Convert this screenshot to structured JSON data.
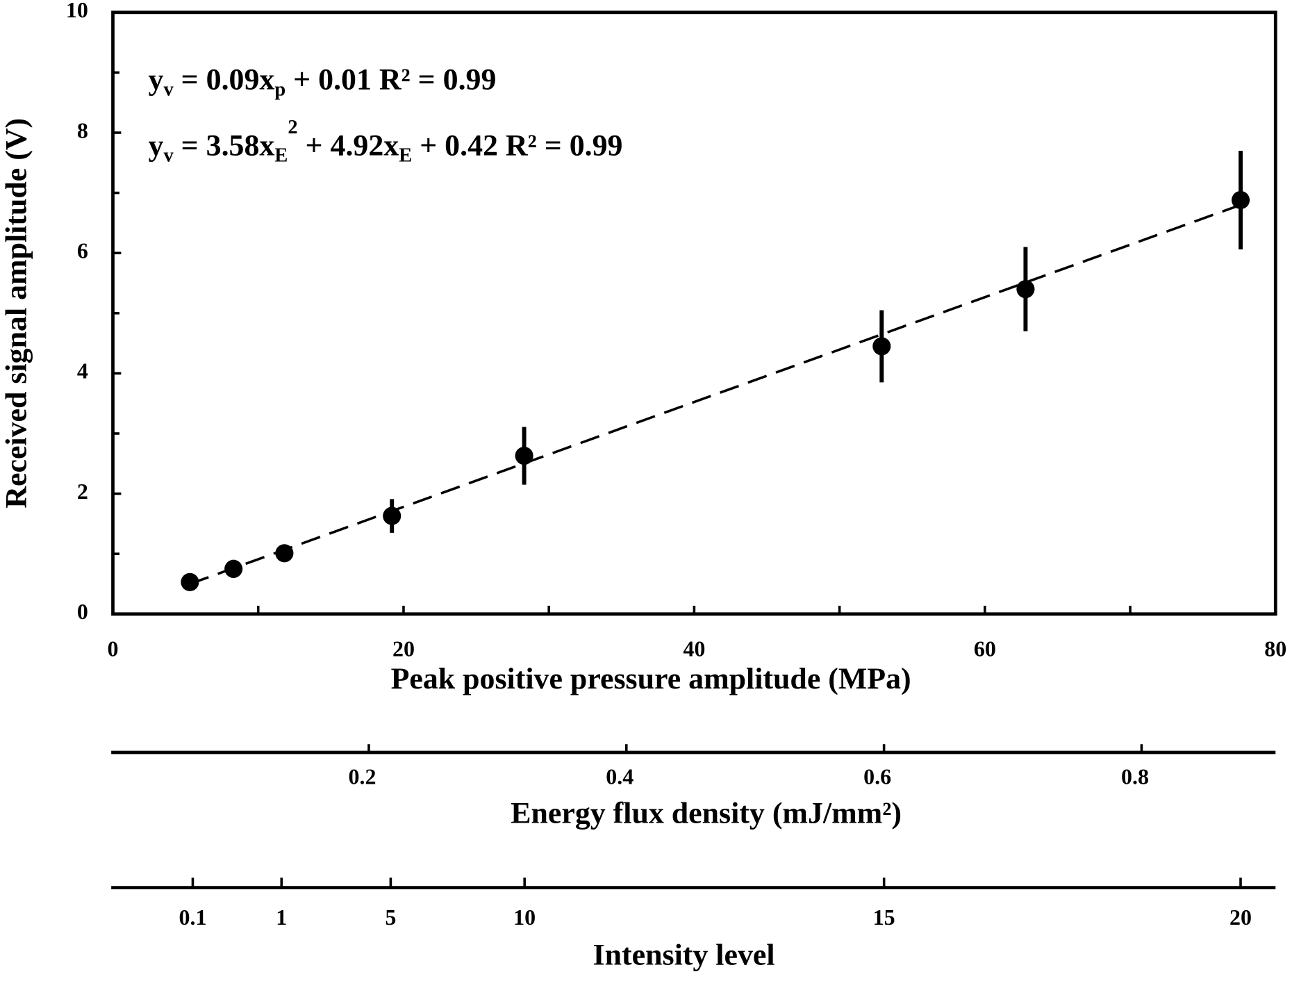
{
  "chart_data": {
    "type": "scatter",
    "xlabel": "Peak positive pressure amplitude (MPa)",
    "ylabel": "Received signal amplitude (V)",
    "xlim": [
      0,
      80
    ],
    "xticks": [
      0,
      20,
      40,
      60,
      80
    ],
    "xminor": [
      10,
      30,
      50,
      70
    ],
    "ylim": [
      0,
      10
    ],
    "yticks": [
      0,
      2,
      4,
      6,
      8,
      10
    ],
    "yminor": [
      1,
      3,
      5,
      7,
      9
    ],
    "color": "#000000",
    "x": [
      5.3,
      8.3,
      11.8,
      19.2,
      28.3,
      52.9,
      62.8,
      77.6
    ],
    "values": [
      0.53,
      0.75,
      1.01,
      1.63,
      2.63,
      4.45,
      5.4,
      6.88
    ],
    "errors": [
      0.05,
      0.15,
      0.1,
      0.28,
      0.48,
      0.6,
      0.7,
      0.82
    ],
    "fit_line": {
      "x": [
        5.3,
        77.6
      ],
      "values": [
        0.5,
        6.8
      ]
    },
    "annotations": [
      [
        "y",
        {
          "sub": "v"
        },
        " = 0.09x",
        {
          "sub": "p"
        },
        " + 0.01    R² = 0.99"
      ],
      [
        "y",
        {
          "sub": "v"
        },
        " = 3.58x",
        {
          "sub": "E"
        },
        {
          "sup": "2"
        },
        " + 4.92x",
        {
          "sub": "E"
        },
        " + 0.42    R² = 0.99"
      ]
    ],
    "energy_axis": {
      "label": "Energy flux density (mJ/mm²)",
      "lim": [
        0,
        0.904
      ],
      "ticks": [
        0.2,
        0.4,
        0.6,
        0.8
      ]
    },
    "intensity_axis": {
      "label": "Intensity level",
      "ticks": [
        0.1,
        1,
        5,
        10,
        15,
        20
      ],
      "pressure_at_tick": [
        5.6,
        11.7,
        19.2,
        28.4,
        53.1,
        77.6
      ]
    }
  }
}
